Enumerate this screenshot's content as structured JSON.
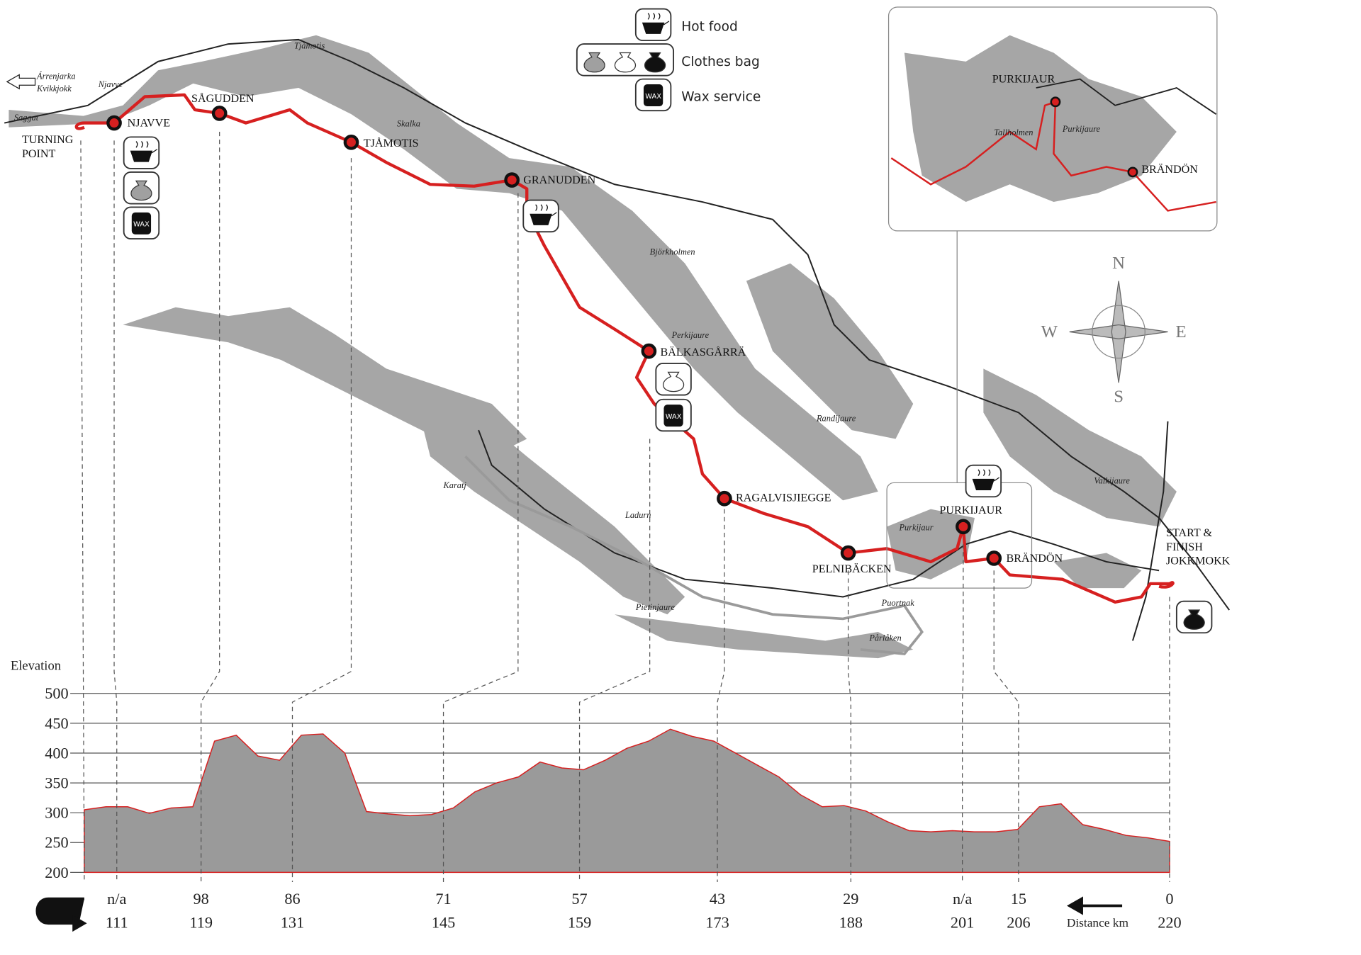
{
  "legend": {
    "hot_food": "Hot food",
    "clothes_bag": "Clothes bag",
    "wax_service": "Wax service",
    "wax_icon": "WAX"
  },
  "turning_point": [
    "TURNING",
    "POINT"
  ],
  "start_finish": [
    "START &",
    "FINISH",
    "JOKKMOKK"
  ],
  "checkpoints": [
    {
      "name": "NJAVVE"
    },
    {
      "name": "SÅGUDDEN"
    },
    {
      "name": "TJÅMOTIS"
    },
    {
      "name": "GRANUDDEN"
    },
    {
      "name": "BÄLKASGÅRRÄ"
    },
    {
      "name": "RAGALVISJIEGGE"
    },
    {
      "name": "PELNIBÄCKEN"
    },
    {
      "name": "PURKIJAUR"
    },
    {
      "name": "BRÄNDÖN"
    }
  ],
  "map_labels": [
    "Árrenjarka",
    "Kvikkjokk",
    "Njavve",
    "Saggat",
    "Tjåmotis",
    "Skalka",
    "Björkholmen",
    "Perkijaure",
    "Randijaure",
    "Karatj",
    "Ladurn",
    "Pietinjaure",
    "Puortnak",
    "Pårlåken",
    "Vaikijaure",
    "Purkijaur"
  ],
  "inset": {
    "labels": [
      "PURKIJAUR",
      "BRÄNDÖN",
      "Tallholmen",
      "Purkijaure"
    ]
  },
  "compass": {
    "n": "N",
    "s": "S",
    "w": "W",
    "e": "E"
  },
  "elevation": {
    "title": "Elevation",
    "ylim": [
      200,
      500
    ],
    "yticks": [
      200,
      250,
      300,
      350,
      400,
      450,
      500
    ],
    "values": [
      305,
      310,
      310,
      299,
      308,
      310,
      420,
      430,
      395,
      388,
      430,
      432,
      400,
      302,
      298,
      295,
      297,
      308,
      335,
      350,
      360,
      385,
      375,
      372,
      388,
      408,
      420,
      440,
      428,
      420,
      400,
      380,
      360,
      330,
      310,
      312,
      303,
      285,
      270,
      268,
      270,
      268,
      268,
      272,
      310,
      315,
      280,
      272,
      262,
      258,
      252
    ],
    "distance_label": "Distance km",
    "columns": [
      {
        "top": "n/a",
        "bottom": "111"
      },
      {
        "top": "98",
        "bottom": "119"
      },
      {
        "top": "86",
        "bottom": "131"
      },
      {
        "top": "71",
        "bottom": "145"
      },
      {
        "top": "57",
        "bottom": "159"
      },
      {
        "top": "43",
        "bottom": "173"
      },
      {
        "top": "29",
        "bottom": "188"
      },
      {
        "top": "n/a",
        "bottom": "201"
      },
      {
        "top": "15",
        "bottom": "206"
      },
      {
        "top": "0",
        "bottom": "220"
      }
    ]
  }
}
